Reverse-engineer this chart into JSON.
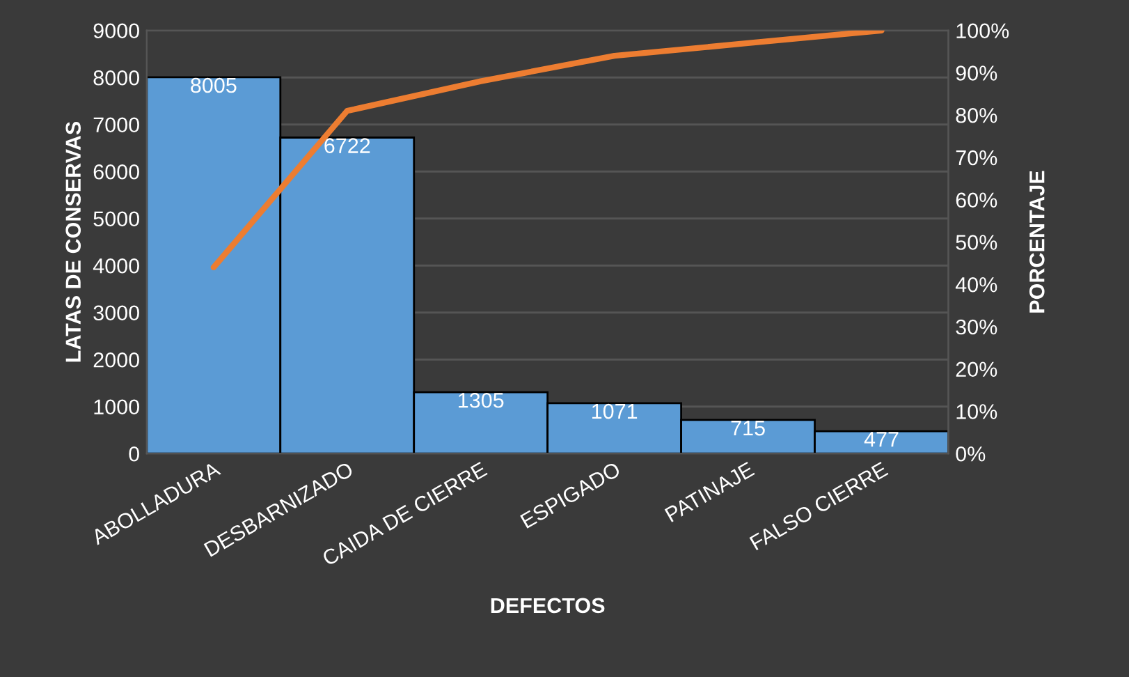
{
  "chart_data": {
    "type": "bar",
    "xlabel": "DEFECTOS",
    "ylabel": "LATAS DE CONSERVAS",
    "y2label": "PORCENTAJE",
    "categories": [
      "ABOLLADURA",
      "DESBARNIZADO",
      "CAIDA DE CIERRE",
      "ESPIGADO",
      "PATINAJE",
      "FALSO CIERRE"
    ],
    "series": [
      {
        "color": "#5b9bd5",
        "values": [
          8005,
          6722,
          1305,
          1071,
          715,
          477
        ],
        "value_labels": [
          "8005",
          "6722",
          "1305",
          "1071",
          "715",
          "477"
        ]
      },
      {
        "type": "line",
        "axis": "y2",
        "color": "#ed7d31",
        "values": [
          44,
          81,
          88,
          94,
          97,
          100
        ]
      }
    ],
    "ylim": [
      0,
      9000
    ],
    "yticks": [
      0,
      1000,
      2000,
      3000,
      4000,
      5000,
      6000,
      7000,
      8000,
      9000
    ],
    "y2lim": [
      0,
      100
    ],
    "y2ticks": [
      {
        "value": 0,
        "label": "0%"
      },
      {
        "value": 10,
        "label": "10%"
      },
      {
        "value": 20,
        "label": "20%"
      },
      {
        "value": 30,
        "label": "30%"
      },
      {
        "value": 40,
        "label": "40%"
      },
      {
        "value": 50,
        "label": "50%"
      },
      {
        "value": 60,
        "label": "60%"
      },
      {
        "value": 70,
        "label": "70%"
      },
      {
        "value": 80,
        "label": "80%"
      },
      {
        "value": 90,
        "label": "90%"
      },
      {
        "value": 100,
        "label": "100%"
      }
    ],
    "grid": "y",
    "marker": "none"
  }
}
